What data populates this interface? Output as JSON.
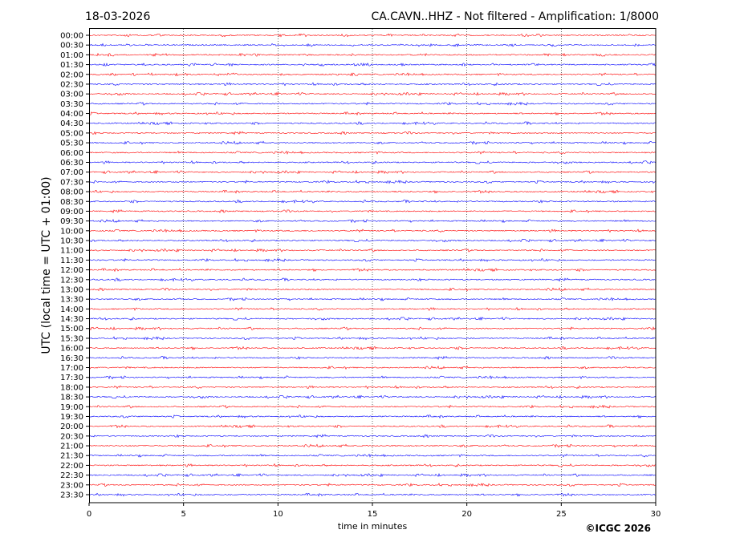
{
  "header": {
    "date": "18-03-2026",
    "title": "CA.CAVN..HHZ - Not filtered - Amplification: 1/8000"
  },
  "copyright": "©ICGC 2026",
  "colors": {
    "even_rows": "#ff0000",
    "odd_rows": "#0000ff",
    "grid": "#000000"
  },
  "chart_data": {
    "type": "line",
    "title": "CA.CAVN..HHZ - Not filtered - Amplification: 1/8000",
    "xlabel": "time in minutes",
    "ylabel": "UTC (local time = UTC + 01:00)",
    "xlim": [
      0,
      30
    ],
    "xticks": [
      "0",
      "5",
      "10",
      "15",
      "20",
      "25",
      "30"
    ],
    "grid": "vertical dotted at 5-minute ticks",
    "rows": [
      "00:00",
      "00:30",
      "01:00",
      "01:30",
      "02:00",
      "02:30",
      "03:00",
      "03:30",
      "04:00",
      "04:30",
      "05:00",
      "05:30",
      "06:00",
      "06:30",
      "07:00",
      "07:30",
      "08:00",
      "08:30",
      "09:00",
      "09:30",
      "10:00",
      "10:30",
      "11:00",
      "11:30",
      "12:00",
      "12:30",
      "13:00",
      "13:30",
      "14:00",
      "14:30",
      "15:00",
      "15:30",
      "16:00",
      "16:30",
      "17:00",
      "17:30",
      "18:00",
      "18:30",
      "19:00",
      "19:30",
      "20:00",
      "20:30",
      "21:00",
      "21:30",
      "22:00",
      "22:30",
      "23:00",
      "23:30"
    ],
    "series_note": "each row is a 30-minute seismogram trace of low-amplitude background noise, alternating red/blue"
  }
}
